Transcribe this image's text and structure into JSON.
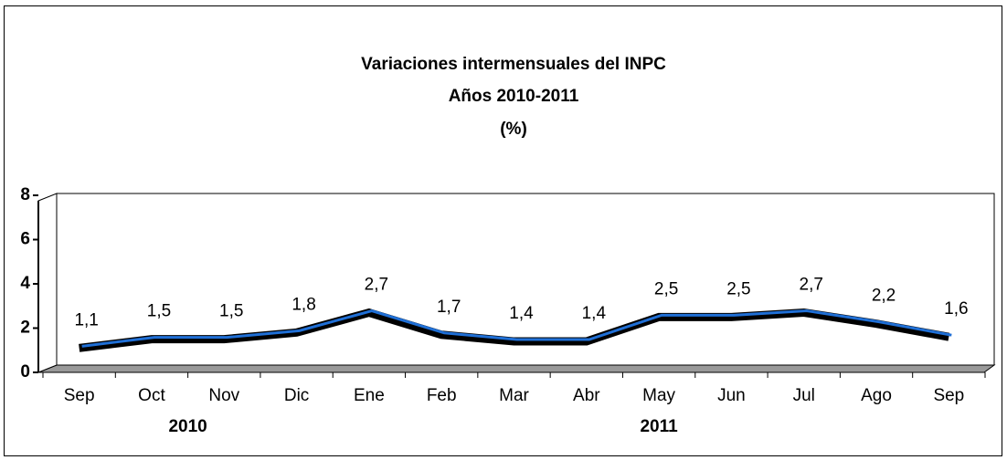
{
  "chart_data": {
    "type": "line",
    "title": "Variaciones intermensuales del INPC",
    "subtitle": "Años 2010-2011",
    "unit_label": "(%)",
    "categories": [
      "Sep",
      "Oct",
      "Nov",
      "Dic",
      "Ene",
      "Feb",
      "Mar",
      "Abr",
      "May",
      "Jun",
      "Jul",
      "Ago",
      "Sep"
    ],
    "groups": [
      {
        "label": "2010",
        "from": 0,
        "to": 3
      },
      {
        "label": "2011",
        "from": 4,
        "to": 12
      }
    ],
    "values": [
      1.1,
      1.5,
      1.5,
      1.8,
      2.7,
      1.7,
      1.4,
      1.4,
      2.5,
      2.5,
      2.7,
      2.2,
      1.6
    ],
    "value_labels": [
      "1,1",
      "1,5",
      "1,5",
      "1,8",
      "2,7",
      "1,7",
      "1,4",
      "1,4",
      "2,5",
      "2,5",
      "2,7",
      "2,2",
      "1,6"
    ],
    "color": "#1f6fd6",
    "ylim": [
      0,
      8
    ],
    "yticks": [
      0,
      2,
      4,
      6,
      8
    ],
    "grid": false
  }
}
